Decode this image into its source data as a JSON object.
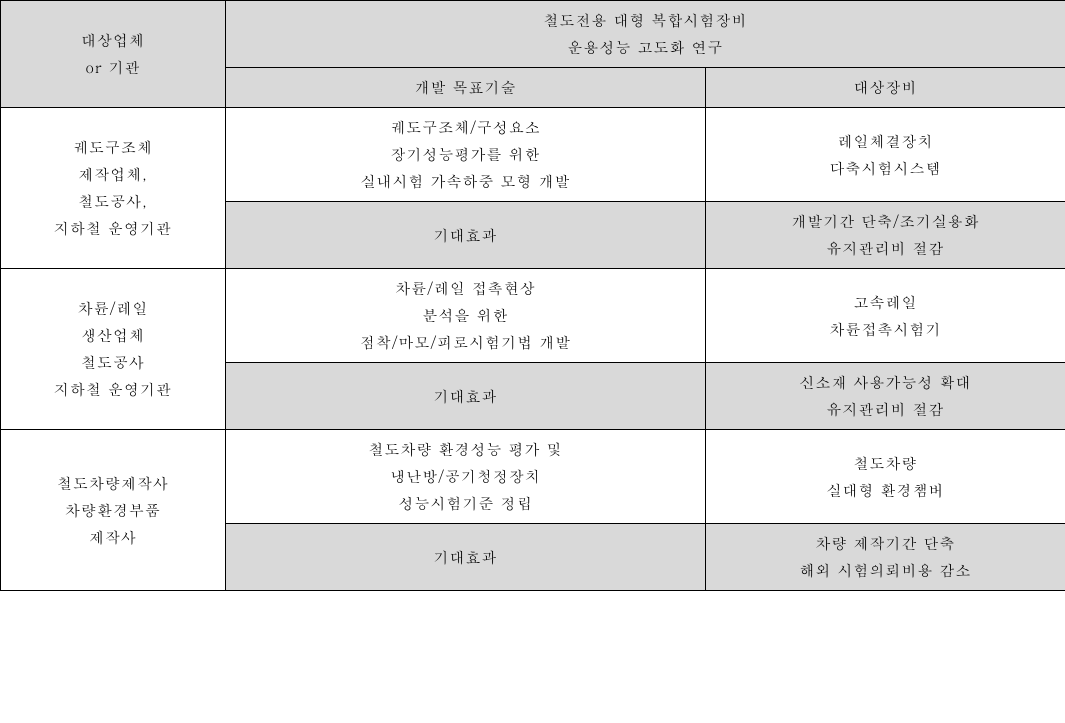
{
  "table": {
    "header": {
      "left_top": "대상업체",
      "left_bottom": "or 기관",
      "right_top_line1": "철도전용 대형 복합시험장비",
      "right_top_line2": "운용성능 고도화 연구",
      "col2_sub": "개발 목표기술",
      "col3_sub": "대상장비"
    },
    "sections": [
      {
        "entity_line1": "궤도구조체",
        "entity_line2": "제작업체,",
        "entity_line3": "철도공사,",
        "entity_line4": "지하철 운영기관",
        "tech_line1": "궤도구조체/구성요소",
        "tech_line2": "장기성능평가를 위한",
        "tech_line3": "실내시험 가속하중 모형 개발",
        "equip_line1": "레일체결장치",
        "equip_line2": "다축시험시스템",
        "effect_label": "기대효과",
        "effect_line1": "개발기간 단축/조기실용화",
        "effect_line2": "유지관리비 절감"
      },
      {
        "entity_line1": "차륜/레일",
        "entity_line2": "생산업체",
        "entity_line3": "철도공사",
        "entity_line4": "지하철 운영기관",
        "tech_line1": "차륜/레일 접촉현상",
        "tech_line2": "분석을 위한",
        "tech_line3": "점착/마모/피로시험기법 개발",
        "equip_line1": "고속레일",
        "equip_line2": "차륜접촉시험기",
        "effect_label": "기대효과",
        "effect_line1": "신소재 사용가능성 확대",
        "effect_line2": "유지관리비 절감"
      },
      {
        "entity_line1": "철도차량제작사",
        "entity_line2": "차량환경부품",
        "entity_line3": "제작사",
        "tech_line1": "철도차량 환경성능 평가 및",
        "tech_line2": "냉난방/공기청정장치",
        "tech_line3": "성능시험기준 정립",
        "equip_line1": "철도차량",
        "equip_line2": "실대형 환경챔버",
        "effect_label": "기대효과",
        "effect_line1": "차량 제작기간 단축",
        "effect_line2": "해외 시험의뢰비용 감소"
      }
    ]
  },
  "style": {
    "header_bg": "#d9d9d9",
    "white_bg": "#ffffff",
    "border_color": "#000000",
    "font_size": 15,
    "line_height": 1.8
  }
}
